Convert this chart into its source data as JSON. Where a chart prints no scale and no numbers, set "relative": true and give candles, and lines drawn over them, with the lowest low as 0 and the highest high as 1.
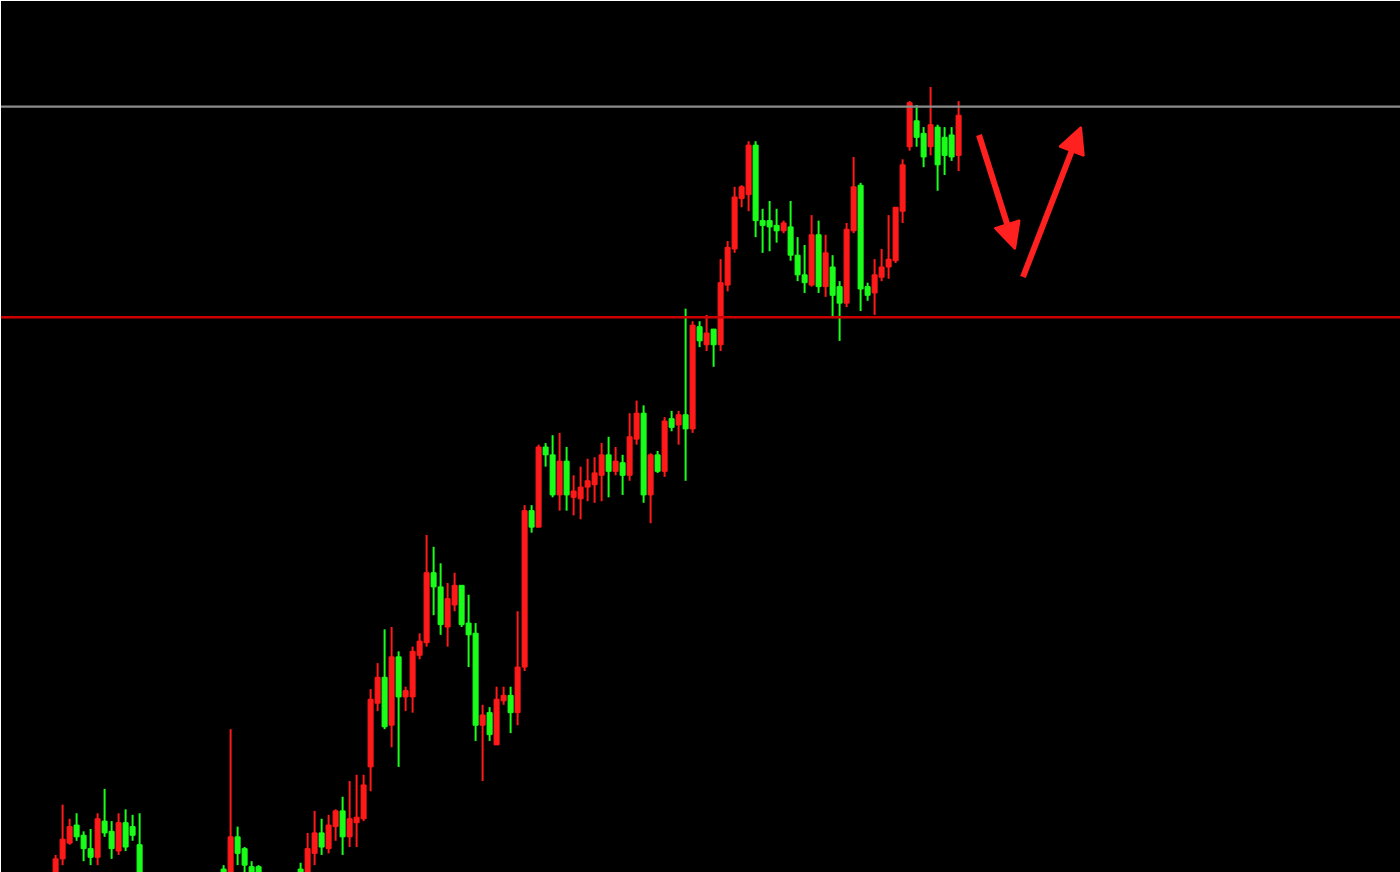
{
  "chart_data": {
    "type": "candlestick",
    "relative": true,
    "grid": false,
    "categories": [
      null,
      null,
      null,
      null,
      null,
      null,
      null,
      null,
      null,
      null,
      null,
      null,
      null,
      null,
      null,
      null,
      null,
      null,
      null,
      null,
      null,
      null,
      null,
      null,
      null,
      null,
      null,
      null,
      null,
      null,
      null,
      null,
      null,
      null,
      null,
      null,
      null,
      null,
      null,
      null,
      null,
      null,
      null,
      null,
      null,
      null,
      null,
      null,
      null,
      null,
      null,
      null,
      null,
      null,
      null,
      null,
      null,
      null,
      null,
      null,
      null,
      null,
      null,
      null,
      null,
      null,
      null,
      null,
      null,
      null,
      null,
      null,
      null,
      null,
      null,
      null,
      null,
      null,
      null,
      null,
      null,
      null,
      null,
      null,
      null,
      null,
      null,
      null,
      null,
      null,
      null,
      null,
      null,
      null,
      null,
      null,
      null,
      null,
      null,
      null,
      null,
      null,
      null,
      null,
      null,
      null,
      null,
      null,
      null,
      null,
      null,
      null,
      null,
      null,
      null,
      null,
      null,
      null,
      null,
      null,
      null,
      null,
      null,
      null,
      null,
      null,
      null,
      null,
      null,
      null
    ],
    "ohlc": [
      [
        0,
        0.023,
        0,
        0.018
      ],
      [
        0.018,
        0.087,
        0.01,
        0.043
      ],
      [
        0.038,
        0.069,
        0.036,
        0.059
      ],
      [
        0.061,
        0.076,
        0.041,
        0.046
      ],
      [
        0.048,
        0.053,
        0.015,
        0.031
      ],
      [
        0.031,
        0.056,
        0.01,
        0.02
      ],
      [
        0.02,
        0.076,
        0.01,
        0.069
      ],
      [
        0.066,
        0.107,
        0.046,
        0.051
      ],
      [
        0.053,
        0.066,
        0.018,
        0.031
      ],
      [
        0.028,
        0.076,
        0.023,
        0.064
      ],
      [
        0.064,
        0.081,
        0.028,
        0.033
      ],
      [
        0.059,
        0.074,
        0.041,
        0.048
      ],
      [
        0.036,
        0.076,
        0,
        0
      ],
      null,
      null,
      null,
      null,
      null,
      null,
      null,
      null,
      null,
      null,
      null,
      [
        0.005,
        0.01,
        0,
        0
      ],
      [
        0,
        0.183,
        0,
        0.046
      ],
      [
        0.046,
        0.059,
        0.01,
        0.025
      ],
      [
        0.031,
        0.033,
        0,
        0.01
      ],
      [
        0.008,
        0.015,
        0,
        0
      ],
      [
        0.008,
        0.01,
        0,
        0
      ],
      null,
      null,
      null,
      null,
      null,
      [
        0.005,
        0.013,
        0,
        0
      ],
      [
        0,
        0.051,
        0,
        0.031
      ],
      [
        0.025,
        0.079,
        0.01,
        0.051
      ],
      [
        0.051,
        0.069,
        0.023,
        0.033
      ],
      [
        0.031,
        0.074,
        0.025,
        0.061
      ],
      [
        0.059,
        0.081,
        0.041,
        0.079
      ],
      [
        0.079,
        0.097,
        0.023,
        0.046
      ],
      [
        0.046,
        0.117,
        0.033,
        0.069
      ],
      [
        0.064,
        0.125,
        0.033,
        0.071
      ],
      [
        0.069,
        0.125,
        0.066,
        0.112
      ],
      [
        0.135,
        0.234,
        0.104,
        0.221
      ],
      [
        0.216,
        0.267,
        0.206,
        0.249
      ],
      [
        0.249,
        0.31,
        0.183,
        0.186
      ],
      [
        0.188,
        0.313,
        0.16,
        0.275
      ],
      [
        0.275,
        0.282,
        0.135,
        0.224
      ],
      [
        0.224,
        0.237,
        0.206,
        0.232
      ],
      [
        0.224,
        0.288,
        0.204,
        0.282
      ],
      [
        0.277,
        0.305,
        0.272,
        0.295
      ],
      [
        0.293,
        0.43,
        0.288,
        0.382
      ],
      [
        0.382,
        0.415,
        0.328,
        0.364
      ],
      [
        0.364,
        0.394,
        0.303,
        0.316
      ],
      [
        0.313,
        0.369,
        0.288,
        0.349
      ],
      [
        0.341,
        0.382,
        0.333,
        0.366
      ],
      [
        0.366,
        0.366,
        0.313,
        0.316
      ],
      [
        0.318,
        0.354,
        0.262,
        0.303
      ],
      [
        0.305,
        0.318,
        0.168,
        0.188
      ],
      [
        0.188,
        0.214,
        0.117,
        0.201
      ],
      [
        0.204,
        0.211,
        0.168,
        0.176
      ],
      [
        0.163,
        0.237,
        0.163,
        0.221
      ],
      [
        0.219,
        0.237,
        0.214,
        0.226
      ],
      [
        0.226,
        0.237,
        0.178,
        0.204
      ],
      [
        0.204,
        0.333,
        0.188,
        0.262
      ],
      [
        0.262,
        0.468,
        0.257,
        0.461
      ],
      [
        0.461,
        0.468,
        0.433,
        0.44
      ],
      [
        0.44,
        0.545,
        0.44,
        0.542
      ],
      [
        0.542,
        0.547,
        0.517,
        0.532
      ],
      [
        0.532,
        0.557,
        0.478,
        0.481
      ],
      [
        0.481,
        0.56,
        0.461,
        0.524
      ],
      [
        0.524,
        0.542,
        0.461,
        0.481
      ],
      [
        0.478,
        0.506,
        0.455,
        0.486
      ],
      [
        0.476,
        0.517,
        0.45,
        0.491
      ],
      [
        0.491,
        0.527,
        0.473,
        0.499
      ],
      [
        0.494,
        0.529,
        0.471,
        0.509
      ],
      [
        0.506,
        0.547,
        0.473,
        0.532
      ],
      [
        0.532,
        0.555,
        0.478,
        0.511
      ],
      [
        0.511,
        0.542,
        0.506,
        0.524
      ],
      [
        0.522,
        0.532,
        0.481,
        0.506
      ],
      [
        0.506,
        0.585,
        0.499,
        0.555
      ],
      [
        0.552,
        0.601,
        0.545,
        0.585
      ],
      [
        0.585,
        0.595,
        0.471,
        0.481
      ],
      [
        0.481,
        0.534,
        0.445,
        0.532
      ],
      [
        0.532,
        0.537,
        0.509,
        0.511
      ],
      [
        0.511,
        0.58,
        0.504,
        0.575
      ],
      [
        0.578,
        0.588,
        0.562,
        0.567
      ],
      [
        0.57,
        0.588,
        0.545,
        0.583
      ],
      [
        0.583,
        0.718,
        0.499,
        0.565
      ],
      [
        0.565,
        0.702,
        0.56,
        0.697
      ],
      [
        0.695,
        0.702,
        0.669,
        0.677
      ],
      [
        0.672,
        0.71,
        0.664,
        0.687
      ],
      [
        0.692,
        0.692,
        0.644,
        0.672
      ],
      [
        0.672,
        0.781,
        0.664,
        0.751
      ],
      [
        0.748,
        0.804,
        0.74,
        0.796
      ],
      [
        0.794,
        0.873,
        0.789,
        0.86
      ],
      [
        0.858,
        0.875,
        0.847,
        0.873
      ],
      [
        0.863,
        0.931,
        0.842,
        0.926
      ],
      [
        0.926,
        0.931,
        0.809,
        0.83
      ],
      [
        0.83,
        0.845,
        0.789,
        0.824
      ],
      [
        0.83,
        0.855,
        0.791,
        0.822
      ],
      [
        0.824,
        0.845,
        0.802,
        0.817
      ],
      [
        0.817,
        0.83,
        0.814,
        0.827
      ],
      [
        0.822,
        0.855,
        0.779,
        0.786
      ],
      [
        0.786,
        0.809,
        0.753,
        0.761
      ],
      [
        0.761,
        0.799,
        0.738,
        0.751
      ],
      [
        0.748,
        0.837,
        0.746,
        0.812
      ],
      [
        0.812,
        0.83,
        0.738,
        0.746
      ],
      [
        0.746,
        0.812,
        0.733,
        0.789
      ],
      [
        0.771,
        0.786,
        0.707,
        0.735
      ],
      [
        0.746,
        0.753,
        0.677,
        0.725
      ],
      [
        0.725,
        0.827,
        0.72,
        0.819
      ],
      [
        0.817,
        0.911,
        0.814,
        0.873
      ],
      [
        0.875,
        0.878,
        0.715,
        0.743
      ],
      [
        0.746,
        0.751,
        0.728,
        0.735
      ],
      [
        0.738,
        0.781,
        0.71,
        0.761
      ],
      [
        0.758,
        0.794,
        0.753,
        0.771
      ],
      [
        0.771,
        0.837,
        0.756,
        0.781
      ],
      [
        0.779,
        0.847,
        0.776,
        0.847
      ],
      [
        0.842,
        0.908,
        0.827,
        0.901
      ],
      [
        0.924,
        0.982,
        0.919,
        0.98
      ],
      [
        0.957,
        0.977,
        0.924,
        0.936
      ],
      [
        0.941,
        0.949,
        0.898,
        0.911
      ],
      [
        0.924,
        1.0,
        0.913,
        0.952
      ],
      [
        0.949,
        0.952,
        0.868,
        0.901
      ],
      [
        0.936,
        0.949,
        0.888,
        0.913
      ],
      [
        0.939,
        0.949,
        0.906,
        0.911
      ],
      [
        0.913,
        0.982,
        0.893,
        0.964
      ]
    ],
    "colors": [
      "#ff1a1a",
      "#ff1a1a",
      "#ff1a1a",
      "#1aff1a",
      "#1aff1a",
      "#1aff1a",
      "#ff1a1a",
      "#1aff1a",
      "#1aff1a",
      "#ff1a1a",
      "#1aff1a",
      "#1aff1a",
      "#1aff1a",
      null,
      null,
      null,
      null,
      null,
      null,
      null,
      null,
      null,
      null,
      null,
      "#1aff1a",
      "#ff1a1a",
      "#1aff1a",
      "#1aff1a",
      "#1aff1a",
      "#1aff1a",
      null,
      null,
      null,
      null,
      null,
      "#1aff1a",
      "#ff1a1a",
      "#ff1a1a",
      "#1aff1a",
      "#ff1a1a",
      "#ff1a1a",
      "#1aff1a",
      "#ff1a1a",
      "#ff1a1a",
      "#ff1a1a",
      "#ff1a1a",
      "#ff1a1a",
      "#1aff1a",
      "#ff1a1a",
      "#1aff1a",
      "#ff1a1a",
      "#ff1a1a",
      "#ff1a1a",
      "#ff1a1a",
      "#1aff1a",
      "#1aff1a",
      "#ff1a1a",
      "#ff1a1a",
      "#1aff1a",
      "#1aff1a",
      "#1aff1a",
      "#ff1a1a",
      "#1aff1a",
      "#ff1a1a",
      "#ff1a1a",
      "#1aff1a",
      "#ff1a1a",
      "#ff1a1a",
      "#1aff1a",
      "#ff1a1a",
      "#1aff1a",
      "#1aff1a",
      "#ff1a1a",
      "#1aff1a",
      "#ff1a1a",
      "#ff1a1a",
      "#ff1a1a",
      "#ff1a1a",
      "#ff1a1a",
      "#1aff1a",
      "#ff1a1a",
      "#1aff1a",
      "#ff1a1a",
      "#ff1a1a",
      "#1aff1a",
      "#ff1a1a",
      "#1aff1a",
      "#ff1a1a",
      "#1aff1a",
      "#ff1a1a",
      "#1aff1a",
      "#ff1a1a",
      "#1aff1a",
      "#ff1a1a",
      "#1aff1a",
      "#ff1a1a",
      "#ff1a1a",
      "#ff1a1a",
      "#ff1a1a",
      "#ff1a1a",
      "#1aff1a",
      "#1aff1a",
      "#1aff1a",
      "#1aff1a",
      "#ff1a1a",
      "#1aff1a",
      "#1aff1a",
      "#1aff1a",
      "#ff1a1a",
      "#1aff1a",
      "#ff1a1a",
      "#1aff1a",
      "#1aff1a",
      "#ff1a1a",
      "#ff1a1a",
      "#1aff1a",
      "#1aff1a",
      "#ff1a1a",
      "#ff1a1a",
      "#ff1a1a",
      "#ff1a1a",
      "#ff1a1a",
      "#ff1a1a",
      "#1aff1a",
      "#1aff1a",
      "#ff1a1a",
      "#1aff1a",
      "#1aff1a",
      "#1aff1a",
      "#ff1a1a"
    ],
    "ref_lines": [
      {
        "axis": "y",
        "value": 0.975,
        "color": "#8c8c8c"
      },
      {
        "axis": "y",
        "value": 0.707,
        "color": "#cc0000"
      }
    ]
  }
}
